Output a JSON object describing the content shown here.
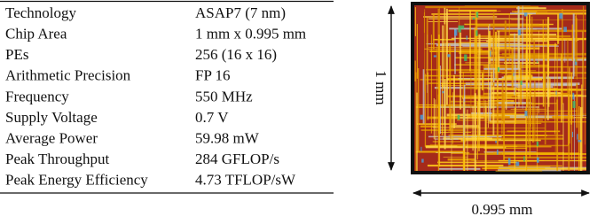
{
  "table": {
    "rows": [
      [
        "Technology",
        "ASAP7 (7 nm)"
      ],
      [
        "Chip Area",
        "1 mm x 0.995 mm"
      ],
      [
        "PEs",
        "256 (16 x 16)"
      ],
      [
        "Arithmetic Precision",
        "FP 16"
      ],
      [
        "Frequency",
        "550 MHz"
      ],
      [
        "Supply Voltage",
        "0.7 V"
      ],
      [
        "Average Power",
        "59.98 mW"
      ],
      [
        "Peak Throughput",
        "284 GFLOP/s"
      ],
      [
        "Peak Energy Efficiency",
        "4.73 TFLOP/sW"
      ]
    ]
  },
  "layout_figure": {
    "height_label": "1 mm",
    "width_label": "0.995 mm"
  }
}
